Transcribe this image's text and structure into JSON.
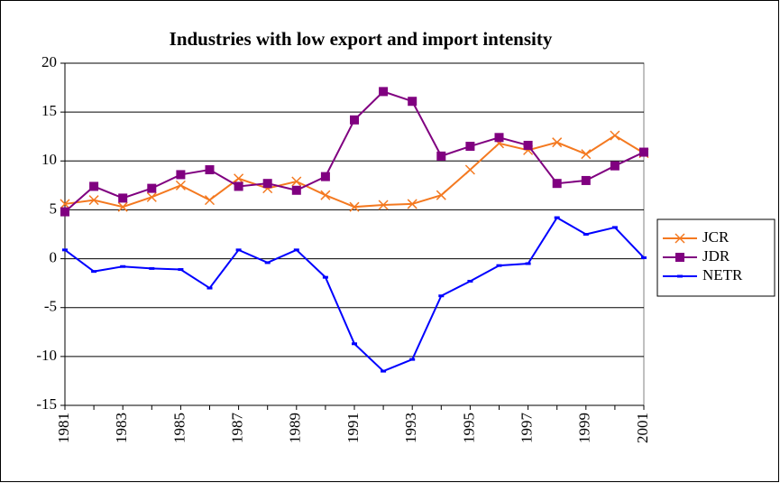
{
  "chart_data": {
    "type": "line",
    "title": "Industries with low export and import intensity",
    "categories": [
      "1981",
      null,
      "1983",
      null,
      "1985",
      null,
      "1987",
      null,
      "1989",
      null,
      "1991",
      null,
      "1993",
      null,
      "1995",
      null,
      "1997",
      null,
      "1999",
      null,
      "2001"
    ],
    "series": [
      {
        "name": "JCR",
        "color": "#f47920",
        "marker": "x",
        "values": [
          5.6,
          6.0,
          5.3,
          6.3,
          7.5,
          6.0,
          8.2,
          7.2,
          7.9,
          6.5,
          5.3,
          5.5,
          5.6,
          6.5,
          9.1,
          11.8,
          11.1,
          11.9,
          10.7,
          12.6,
          10.8
        ]
      },
      {
        "name": "JDR",
        "color": "#800080",
        "marker": "square",
        "values": [
          4.8,
          7.4,
          6.2,
          7.2,
          8.6,
          9.1,
          7.4,
          7.7,
          7.0,
          8.4,
          14.2,
          17.1,
          16.1,
          10.5,
          11.5,
          12.4,
          11.6,
          7.7,
          8.0,
          9.5,
          10.9
        ]
      },
      {
        "name": "NETR",
        "color": "#0000ff",
        "marker": "dash",
        "values": [
          0.9,
          -1.3,
          -0.8,
          -1.0,
          -1.1,
          -3.0,
          0.9,
          -0.4,
          0.9,
          -1.9,
          -8.7,
          -11.5,
          -10.3,
          -3.8,
          -2.3,
          -0.7,
          -0.5,
          4.2,
          2.5,
          3.2,
          0.1
        ]
      }
    ],
    "ylim": [
      -15,
      20
    ],
    "yticks": [
      -15,
      -10,
      -5,
      0,
      5,
      10,
      15,
      20
    ],
    "grid": true,
    "legend": "right"
  }
}
